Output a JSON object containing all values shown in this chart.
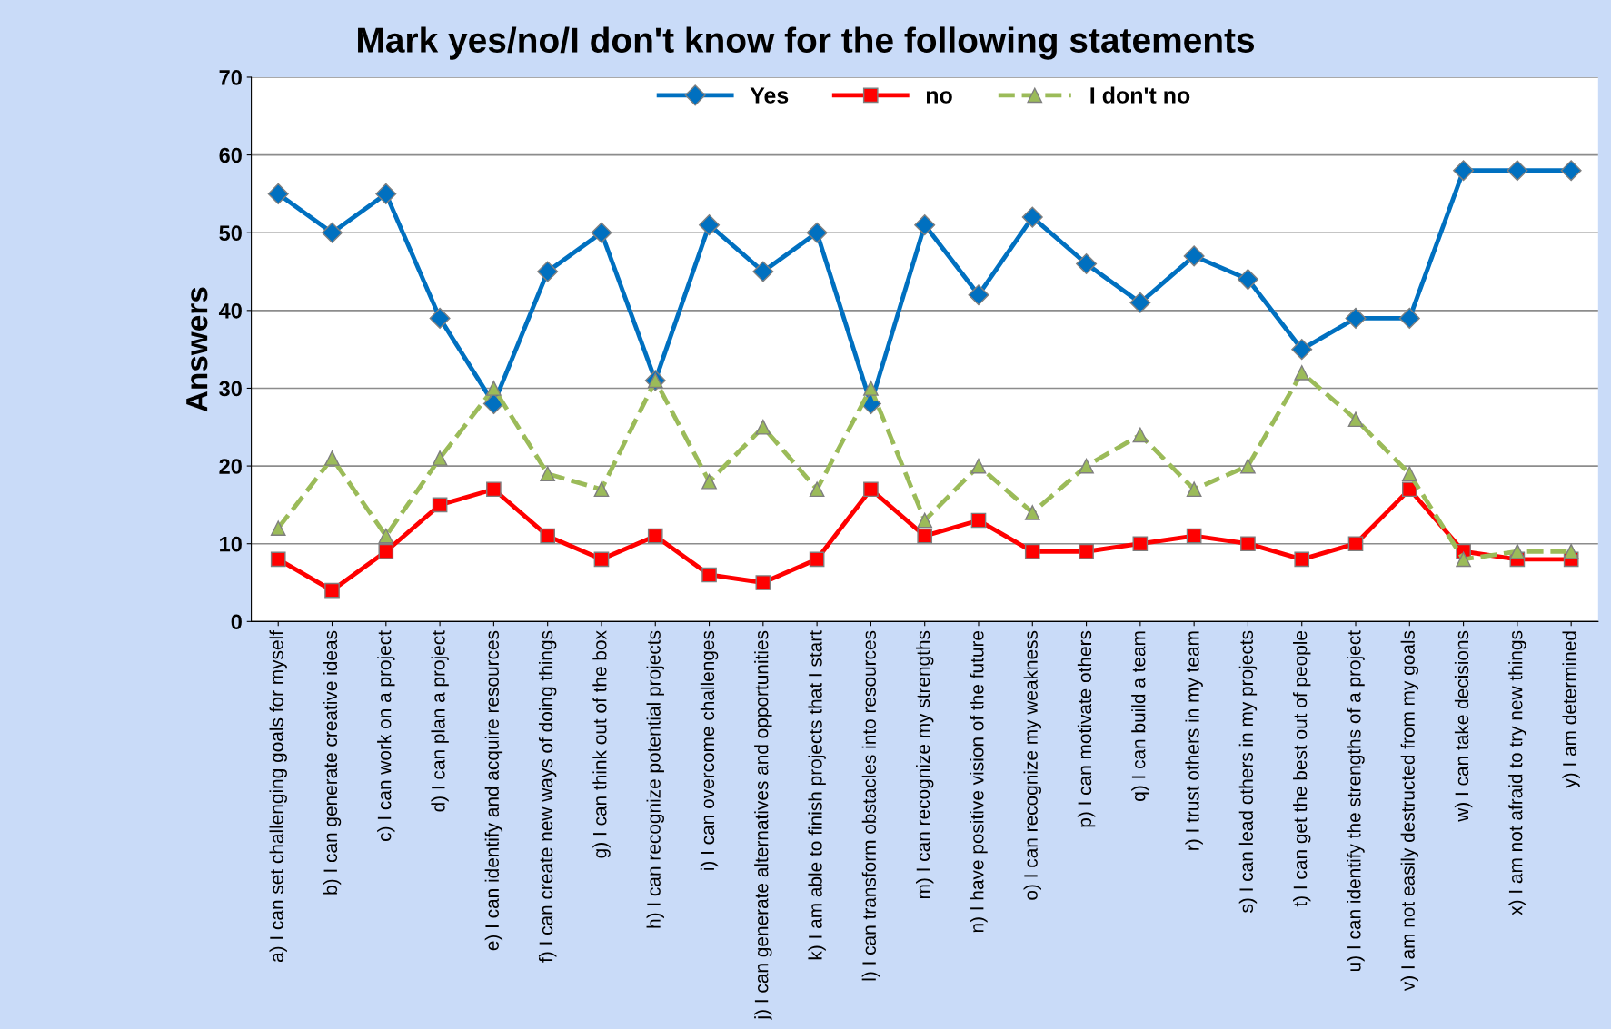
{
  "chart_data": {
    "type": "line",
    "title": "Mark yes/no/I don't know for the following statements",
    "ylabel": "Answers",
    "categories": [
      "a) I can set challenging goals for myself",
      "b) I can generate creative ideas",
      "c) I can work on a project",
      "d) I can plan a project",
      "e) I can identify and acquire resources",
      "f) I can create new ways of doing things",
      "g) I can think out of the box",
      "h) I can recognize potential projects",
      "i) I can overcome challenges",
      "j) I can generate alternatives and opportunities",
      "k) I am able to finish projects that I start",
      "l) I can transform obstacles into resources",
      "m) I can recognize my strengths",
      "n) I have positive vision of the future",
      "o) I can recognize my weakness",
      "p) I can motivate others",
      "q) I can build a team",
      "r) I trust others in my team",
      "s) I can lead others in my projects",
      "t) I can get the best out of people",
      "u) I can identify the strengths of a project",
      "v) I am not easily destructed from my goals",
      "w) I can take decisions",
      "x) I am not afraid to try new things",
      "y) I am determined"
    ],
    "series": [
      {
        "name": "Yes",
        "color": "#0070c0",
        "marker": "diamond",
        "line_style": "solid",
        "values": [
          55,
          50,
          55,
          39,
          28,
          45,
          50,
          31,
          51,
          45,
          50,
          28,
          51,
          42,
          52,
          46,
          41,
          47,
          44,
          35,
          39,
          39,
          58,
          58,
          58
        ]
      },
      {
        "name": "no",
        "color": "#ff0000",
        "marker": "square",
        "line_style": "solid",
        "values": [
          8,
          4,
          9,
          15,
          17,
          11,
          8,
          11,
          6,
          5,
          8,
          17,
          11,
          13,
          9,
          9,
          10,
          11,
          10,
          8,
          10,
          17,
          9,
          8,
          8
        ]
      },
      {
        "name": "I don't no",
        "color": "#9bbb59",
        "marker": "triangle",
        "line_style": "dashed",
        "values": [
          12,
          21,
          11,
          21,
          30,
          19,
          17,
          31,
          18,
          25,
          17,
          30,
          13,
          20,
          14,
          20,
          24,
          17,
          20,
          32,
          26,
          19,
          8,
          9,
          9
        ]
      }
    ],
    "ylim": [
      0,
      70
    ],
    "yticks": [
      0,
      10,
      20,
      30,
      40,
      50,
      60,
      70
    ],
    "grid": "y",
    "legend": "top"
  }
}
